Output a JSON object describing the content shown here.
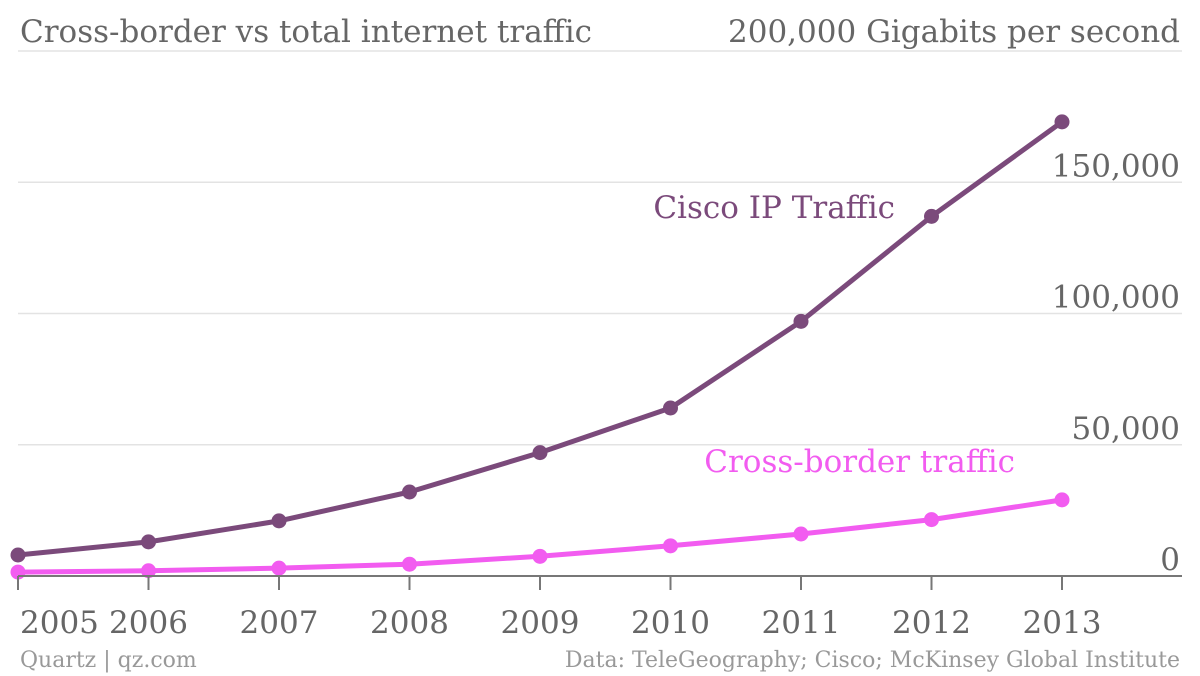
{
  "chart_data": {
    "type": "line",
    "title": "Cross-border vs total internet traffic",
    "unit_label": "200,000 Gigabits per second",
    "x": [
      2005,
      2006,
      2007,
      2008,
      2009,
      2010,
      2011,
      2012,
      2013
    ],
    "x_tick_labels": [
      "2005",
      "2006",
      "2007",
      "2008",
      "2009",
      "2010",
      "2011",
      "2012",
      "2013"
    ],
    "y_tick_labels": [
      "0",
      "50,000",
      "100,000",
      "150,000"
    ],
    "y_ticks": [
      0,
      50000,
      100000,
      150000
    ],
    "ylim": [
      0,
      200000
    ],
    "grid": true,
    "series": [
      {
        "name": "Cisco IP Traffic",
        "color": "#7b4a7b",
        "values": [
          8000,
          13000,
          21000,
          32000,
          47000,
          64000,
          97000,
          137000,
          173000
        ]
      },
      {
        "name": "Cross-border traffic",
        "color": "#f25cf0",
        "values": [
          1500,
          2000,
          3000,
          4500,
          7500,
          11500,
          16000,
          21500,
          29000
        ]
      }
    ]
  },
  "footer": {
    "source_left": "Quartz | qz.com",
    "source_right": "Data: TeleGeography; Cisco; McKinsey Global Institute"
  },
  "colors": {
    "text": "#666666",
    "grid": "#e3e3e3",
    "axis": "#777777"
  }
}
